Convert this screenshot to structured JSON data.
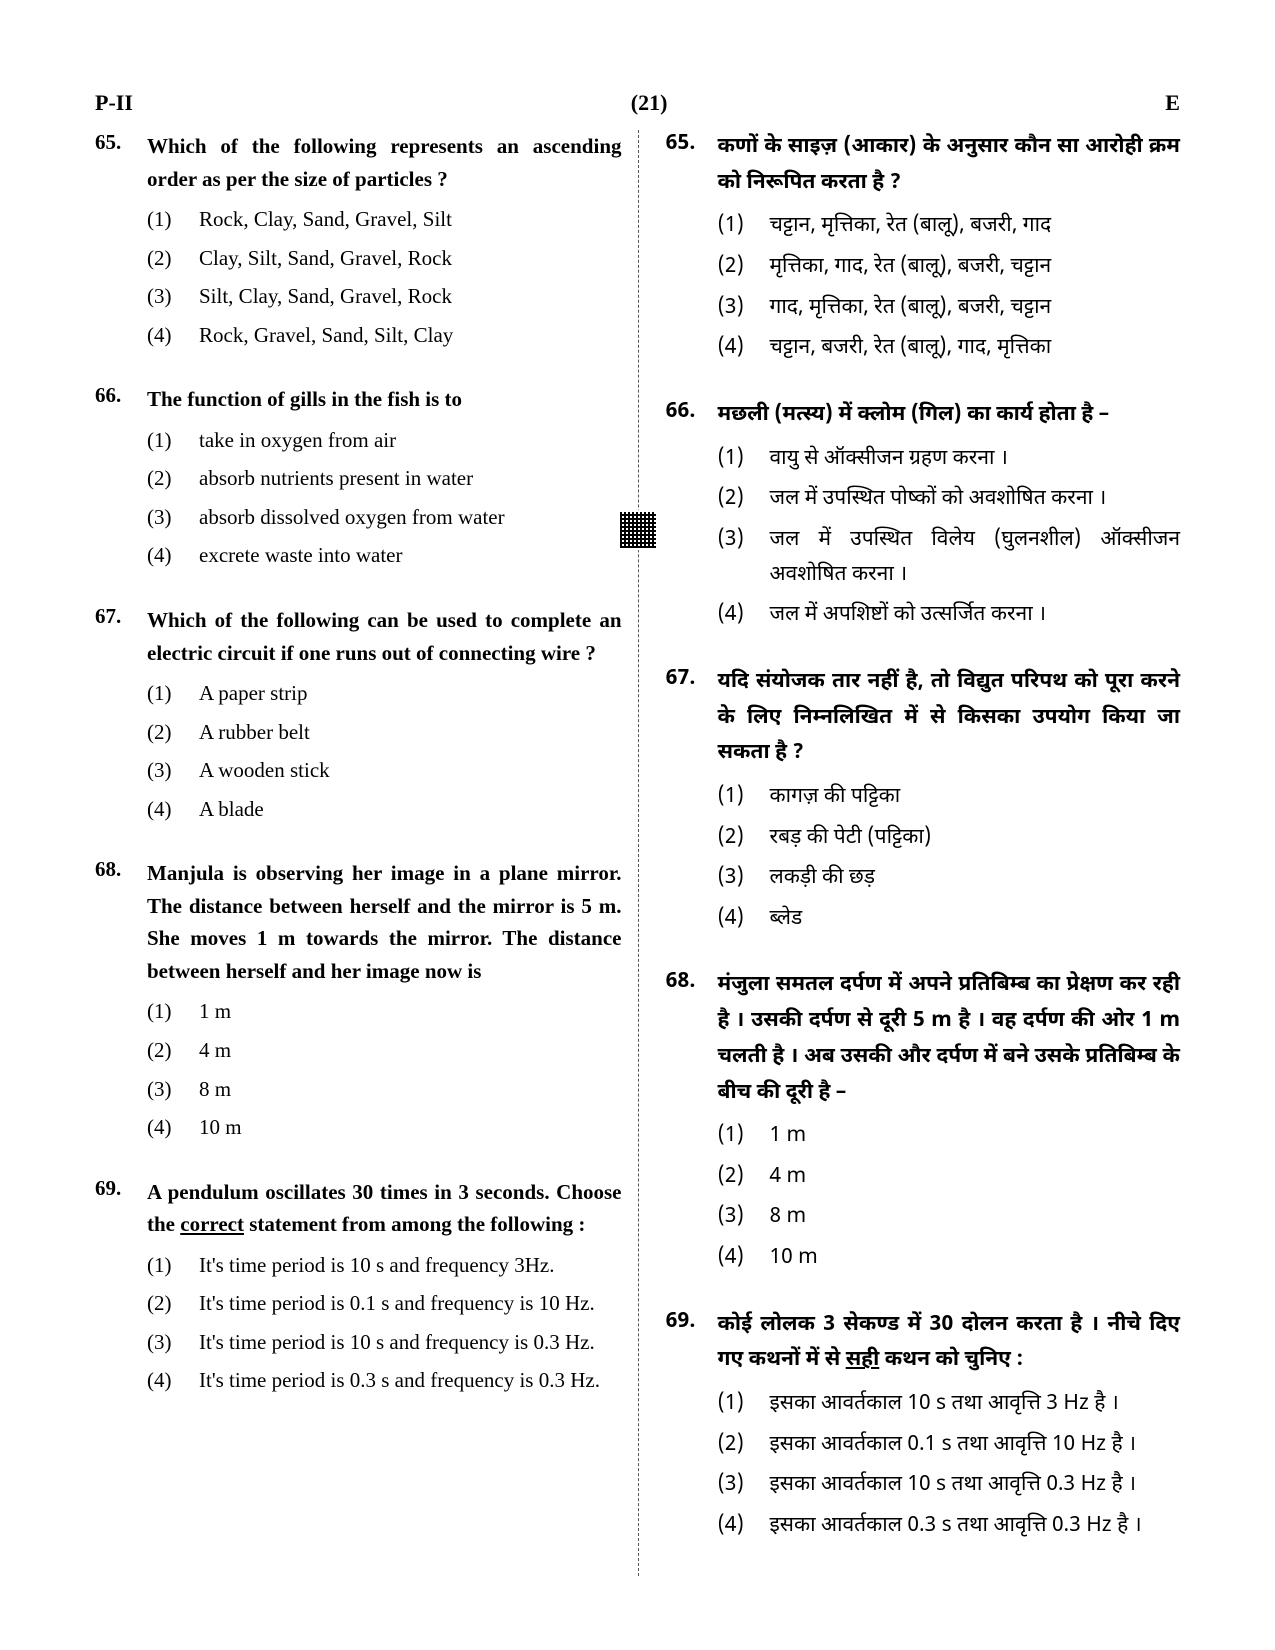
{
  "header": {
    "left": "P-II",
    "center": "(21)",
    "right": "E"
  },
  "en": {
    "q65": {
      "num": "65.",
      "text": "Which of the following represents an ascending order as per the size of particles ?",
      "opts": [
        "Rock, Clay, Sand, Gravel, Silt",
        "Clay, Silt, Sand, Gravel, Rock",
        "Silt, Clay, Sand, Gravel, Rock",
        "Rock, Gravel, Sand, Silt, Clay"
      ]
    },
    "q66": {
      "num": "66.",
      "text": "The function of gills in the fish is to",
      "opts": [
        "take in oxygen from air",
        "absorb nutrients present in water",
        "absorb dissolved oxygen from water",
        "excrete waste into water"
      ]
    },
    "q67": {
      "num": "67.",
      "text": "Which of the following can be used to complete an electric circuit if one runs out of connecting wire ?",
      "opts": [
        "A paper strip",
        "A rubber belt",
        "A wooden stick",
        "A blade"
      ]
    },
    "q68": {
      "num": "68.",
      "text": "Manjula is observing her image in a plane mirror. The distance between herself and the mirror is 5 m. She moves 1 m towards the mirror. The distance between herself and her image now is",
      "opts": [
        "1 m",
        "4 m",
        "8 m",
        "10 m"
      ]
    },
    "q69": {
      "num": "69.",
      "text_pre": "A pendulum oscillates 30 times in 3 seconds. Choose the ",
      "text_u": "correct",
      "text_post": " statement from among the following :",
      "opts": [
        "It's time period is 10 s and frequency 3Hz.",
        "It's time period is 0.1 s and frequency is 10 Hz.",
        "It's time period is 10 s and frequency is 0.3 Hz.",
        "It's time period is 0.3 s and frequency is 0.3 Hz."
      ]
    }
  },
  "hi": {
    "q65": {
      "num": "65.",
      "text": "कणों के साइज़ (आकार) के अनुसार कौन सा आरोही क्रम को निरूपित करता है ?",
      "opts": [
        "चट्टान, मृत्तिका, रेत (बालू), बजरी, गाद",
        "मृत्तिका, गाद, रेत (बालू), बजरी, चट्टान",
        "गाद, मृत्तिका, रेत (बालू), बजरी, चट्टान",
        "चट्टान, बजरी, रेत (बालू), गाद, मृत्तिका"
      ]
    },
    "q66": {
      "num": "66.",
      "text": "मछली (मत्स्य) में क्लोम (गिल) का कार्य होता है –",
      "opts": [
        "वायु से ऑक्सीजन ग्रहण करना ।",
        "जल में उपस्थित पोष्कों को अवशोषित करना ।",
        "जल में उपस्थित विलेय (घुलनशील) ऑक्सीजन अवशोषित करना ।",
        "जल में अपशिष्टों को उत्सर्जित करना ।"
      ]
    },
    "q67": {
      "num": "67.",
      "text": "यदि संयोजक तार नहीं है, तो विद्युत परिपथ को पूरा करने के लिए निम्नलिखित में से किसका उपयोग किया जा सकता है ?",
      "opts": [
        "कागज़ की पट्टिका",
        "रबड़ की पेटी (पट्टिका)",
        "लकड़ी की छड़",
        "ब्लेड"
      ]
    },
    "q68": {
      "num": "68.",
      "text": "मंजुला समतल दर्पण में अपने प्रतिबिम्ब का प्रेक्षण कर रही है । उसकी दर्पण से दूरी 5 m है । वह दर्पण की ओर 1 m चलती है । अब उसकी और दर्पण में बने उसके प्रतिबिम्ब के बीच की दूरी है –",
      "opts": [
        "1 m",
        "4 m",
        "8 m",
        "10 m"
      ]
    },
    "q69": {
      "num": "69.",
      "text_pre": "कोई लोलक 3 सेकण्ड में 30 दोलन करता है । नीचे दिए गए कथनों में से ",
      "text_u": "सही",
      "text_post": " कथन को चुनिए :",
      "opts": [
        "इसका आवर्तकाल 10 s तथा आवृत्ति 3 Hz है ।",
        "इसका आवर्तकाल 0.1 s तथा आवृत्ति 10 Hz है ।",
        "इसका आवर्तकाल 10 s तथा आवृत्ति 0.3 Hz है ।",
        "इसका आवर्तकाल 0.3 s तथा आवृत्ति 0.3 Hz है ।"
      ]
    }
  },
  "optlabels": [
    "(1)",
    "(2)",
    "(3)",
    "(4)"
  ]
}
